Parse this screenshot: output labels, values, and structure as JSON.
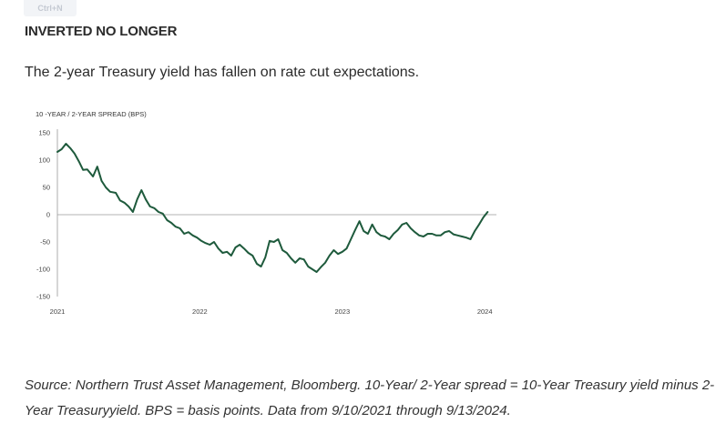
{
  "toolbar": {
    "badge": "Ctrl+N"
  },
  "article": {
    "heading": "INVERTED NO LONGER",
    "subtitle": "The 2-year Treasury yield has fallen on rate cut expectations.",
    "source": "Source: Northern Trust Asset Management, Bloomberg. 10-Year/ 2-Year spread = 10-Year Treasury yield minus 2-Year Treasuryyield. BPS = basis points. Data from 9/10/2021 through 9/13/2024."
  },
  "colors": {
    "line": "#1e5a3c",
    "axis": "#9a9a9a"
  },
  "chart_data": {
    "type": "line",
    "title": "",
    "ylabel": "10 -YEAR / 2-YEAR SPREAD (BPS)",
    "xlabel": "",
    "xlim": [
      2021,
      2024.05
    ],
    "ylim": [
      -150,
      150
    ],
    "yticks": [
      150,
      100,
      50,
      0,
      -50,
      -100,
      -150
    ],
    "xticks": [
      "2021",
      "2022",
      "2023",
      "2024"
    ],
    "grid": false,
    "series": [
      {
        "x": [
          2021.0,
          2021.03,
          2021.06,
          2021.09,
          2021.12,
          2021.15,
          2021.18,
          2021.21,
          2021.25,
          2021.28,
          2021.31,
          2021.34,
          2021.37,
          2021.41,
          2021.44,
          2021.47,
          2021.5,
          2021.53,
          2021.56,
          2021.59,
          2021.62,
          2021.65,
          2021.68,
          2021.71,
          2021.74,
          2021.77,
          2021.8,
          2021.83,
          2021.86,
          2021.89,
          2021.92,
          2021.95,
          2021.98,
          2022.01,
          2022.04,
          2022.07,
          2022.1,
          2022.13,
          2022.16,
          2022.19,
          2022.22,
          2022.25,
          2022.28,
          2022.31,
          2022.34,
          2022.37,
          2022.4,
          2022.43,
          2022.46,
          2022.49,
          2022.52,
          2022.55,
          2022.58,
          2022.61,
          2022.64,
          2022.67,
          2022.7,
          2022.73,
          2022.76,
          2022.79,
          2022.82,
          2022.85,
          2022.88,
          2022.91,
          2022.94,
          2022.97,
          2023.0,
          2023.03,
          2023.06,
          2023.09,
          2023.12,
          2023.15,
          2023.18,
          2023.21,
          2023.24,
          2023.27,
          2023.3,
          2023.33,
          2023.36,
          2023.39,
          2023.42,
          2023.45,
          2023.48,
          2023.51,
          2023.54,
          2023.57,
          2023.6,
          2023.63,
          2023.66,
          2023.69,
          2023.72,
          2023.75,
          2023.78,
          2023.81,
          2023.84,
          2023.87,
          2023.9,
          2023.93,
          2023.96,
          2023.99,
          2024.02
        ],
        "values": [
          115,
          120,
          130,
          122,
          112,
          98,
          82,
          83,
          70,
          88,
          62,
          50,
          42,
          40,
          26,
          22,
          15,
          5,
          28,
          45,
          28,
          15,
          12,
          5,
          2,
          -10,
          -15,
          -22,
          -25,
          -35,
          -32,
          -38,
          -42,
          -48,
          -52,
          -55,
          -50,
          -62,
          -70,
          -68,
          -75,
          -60,
          -55,
          -62,
          -70,
          -75,
          -90,
          -95,
          -78,
          -48,
          -50,
          -45,
          -65,
          -70,
          -80,
          -88,
          -80,
          -82,
          -95,
          -100,
          -105,
          -96,
          -88,
          -75,
          -65,
          -72,
          -68,
          -62,
          -45,
          -28,
          -12,
          -30,
          -35,
          -18,
          -32,
          -38,
          -40,
          -45,
          -35,
          -28,
          -18,
          -15,
          -25,
          -32,
          -38,
          -40,
          -35,
          -35,
          -38,
          -38,
          -32,
          -30,
          -36,
          -38,
          -40,
          -42,
          -45,
          -30,
          -18,
          -5,
          5
        ]
      }
    ]
  }
}
